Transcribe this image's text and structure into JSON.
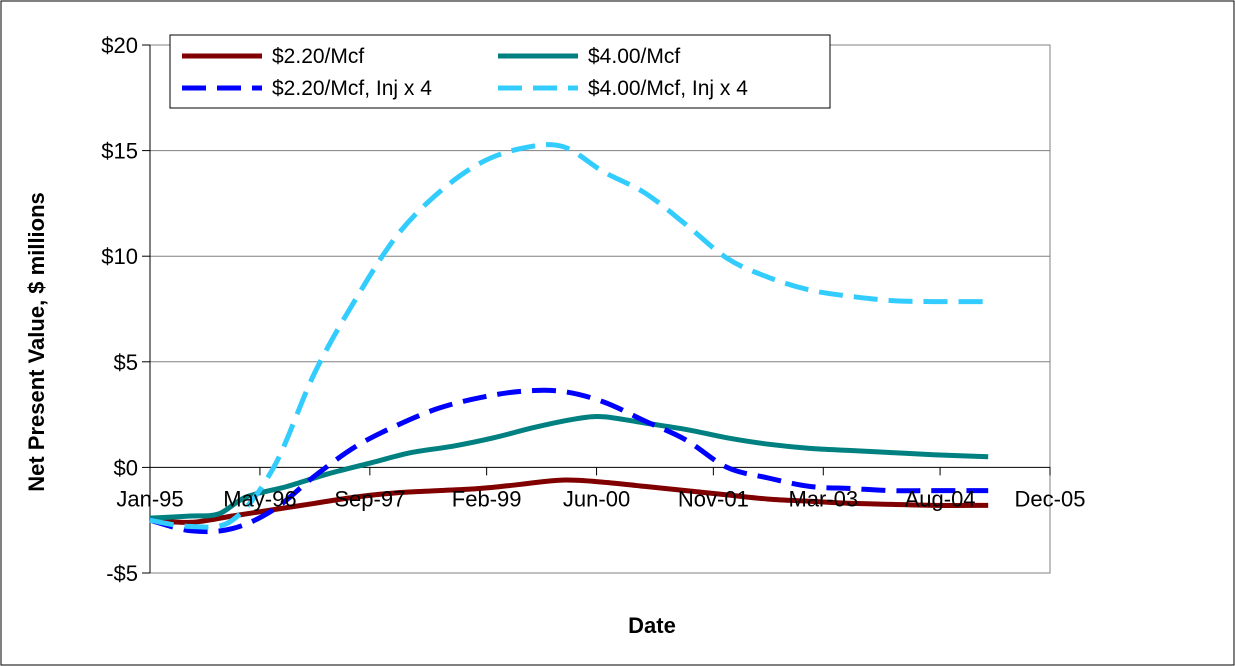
{
  "chart_data": {
    "type": "line",
    "title": "",
    "xlabel": "Date",
    "ylabel": "Net Present Value, $ millions",
    "x_axis": {
      "type": "date",
      "min": "1995-01",
      "max": "2005-12",
      "ticks": [
        {
          "date": "1995-01",
          "label": "Jan-95"
        },
        {
          "date": "1996-05",
          "label": "May-96"
        },
        {
          "date": "1997-09",
          "label": "Sep-97"
        },
        {
          "date": "1999-02",
          "label": "Feb-99"
        },
        {
          "date": "2000-06",
          "label": "Jun-00"
        },
        {
          "date": "2001-11",
          "label": "Nov-01"
        },
        {
          "date": "2003-03",
          "label": "Mar-03"
        },
        {
          "date": "2004-08",
          "label": "Aug-04"
        },
        {
          "date": "2005-12",
          "label": "Dec-05"
        }
      ]
    },
    "y_axis": {
      "min": -5,
      "max": 20,
      "ticks": [
        {
          "value": -5,
          "label": "-$5"
        },
        {
          "value": 0,
          "label": "$0"
        },
        {
          "value": 5,
          "label": "$5"
        },
        {
          "value": 10,
          "label": "$10"
        },
        {
          "value": 15,
          "label": "$15"
        },
        {
          "value": 20,
          "label": "$20"
        }
      ]
    },
    "grid": "horizontal",
    "legend_position": "top-left",
    "series": [
      {
        "name": "$2.20/Mcf",
        "color": "#800000",
        "dash": "solid",
        "points": [
          [
            "1995-01",
            -2.5
          ],
          [
            "1995-07",
            -2.6
          ],
          [
            "1996-01",
            -2.3
          ],
          [
            "1996-07",
            -2.0
          ],
          [
            "1997-01",
            -1.7
          ],
          [
            "1997-07",
            -1.4
          ],
          [
            "1998-01",
            -1.2
          ],
          [
            "1998-07",
            -1.1
          ],
          [
            "1999-01",
            -1.0
          ],
          [
            "1999-07",
            -0.8
          ],
          [
            "2000-01",
            -0.6
          ],
          [
            "2000-07",
            -0.7
          ],
          [
            "2001-01",
            -0.9
          ],
          [
            "2001-07",
            -1.1
          ],
          [
            "2002-01",
            -1.3
          ],
          [
            "2002-07",
            -1.5
          ],
          [
            "2003-01",
            -1.6
          ],
          [
            "2003-07",
            -1.7
          ],
          [
            "2004-01",
            -1.75
          ],
          [
            "2004-07",
            -1.8
          ],
          [
            "2005-03",
            -1.8
          ]
        ]
      },
      {
        "name": "$4.00/Mcf",
        "color": "#008080",
        "dash": "solid",
        "points": [
          [
            "1995-01",
            -2.4
          ],
          [
            "1995-07",
            -2.3
          ],
          [
            "1995-11",
            -2.2
          ],
          [
            "1996-03",
            -1.4
          ],
          [
            "1996-09",
            -0.9
          ],
          [
            "1997-03",
            -0.3
          ],
          [
            "1997-09",
            0.2
          ],
          [
            "1998-03",
            0.7
          ],
          [
            "1998-09",
            1.0
          ],
          [
            "1999-03",
            1.4
          ],
          [
            "1999-09",
            1.9
          ],
          [
            "2000-03",
            2.3
          ],
          [
            "2000-07",
            2.4
          ],
          [
            "2001-01",
            2.1
          ],
          [
            "2001-07",
            1.8
          ],
          [
            "2002-01",
            1.4
          ],
          [
            "2002-07",
            1.1
          ],
          [
            "2003-01",
            0.9
          ],
          [
            "2003-07",
            0.8
          ],
          [
            "2004-01",
            0.7
          ],
          [
            "2004-07",
            0.6
          ],
          [
            "2005-03",
            0.5
          ]
        ]
      },
      {
        "name": "$2.20/Mcf, Inj x 4",
        "color": "#0000FF",
        "dash": "dashed",
        "points": [
          [
            "1995-01",
            -2.5
          ],
          [
            "1995-07",
            -3.0
          ],
          [
            "1996-01",
            -2.9
          ],
          [
            "1996-07",
            -2.0
          ],
          [
            "1997-01",
            -0.4
          ],
          [
            "1997-07",
            1.0
          ],
          [
            "1998-01",
            2.0
          ],
          [
            "1998-07",
            2.8
          ],
          [
            "1999-01",
            3.3
          ],
          [
            "1999-07",
            3.6
          ],
          [
            "2000-01",
            3.6
          ],
          [
            "2000-07",
            3.1
          ],
          [
            "2001-01",
            2.2
          ],
          [
            "2001-07",
            1.3
          ],
          [
            "2002-01",
            0.0
          ],
          [
            "2002-07",
            -0.5
          ],
          [
            "2003-01",
            -0.9
          ],
          [
            "2003-07",
            -1.0
          ],
          [
            "2004-01",
            -1.1
          ],
          [
            "2004-07",
            -1.1
          ],
          [
            "2005-03",
            -1.1
          ]
        ]
      },
      {
        "name": "$4.00/Mcf, Inj x 4",
        "color": "#33CCFF",
        "dash": "dashed",
        "points": [
          [
            "1995-01",
            -2.5
          ],
          [
            "1995-07",
            -2.8
          ],
          [
            "1996-01",
            -2.5
          ],
          [
            "1996-07",
            0.0
          ],
          [
            "1997-01",
            4.5
          ],
          [
            "1997-07",
            8.0
          ],
          [
            "1998-01",
            11.0
          ],
          [
            "1998-07",
            13.0
          ],
          [
            "1999-01",
            14.4
          ],
          [
            "1999-07",
            15.1
          ],
          [
            "2000-01",
            15.2
          ],
          [
            "2000-07",
            14.0
          ],
          [
            "2001-01",
            13.0
          ],
          [
            "2001-07",
            11.5
          ],
          [
            "2002-01",
            9.9
          ],
          [
            "2002-07",
            9.0
          ],
          [
            "2003-01",
            8.4
          ],
          [
            "2003-07",
            8.1
          ],
          [
            "2004-01",
            7.9
          ],
          [
            "2004-07",
            7.85
          ],
          [
            "2005-03",
            7.85
          ]
        ]
      }
    ]
  }
}
